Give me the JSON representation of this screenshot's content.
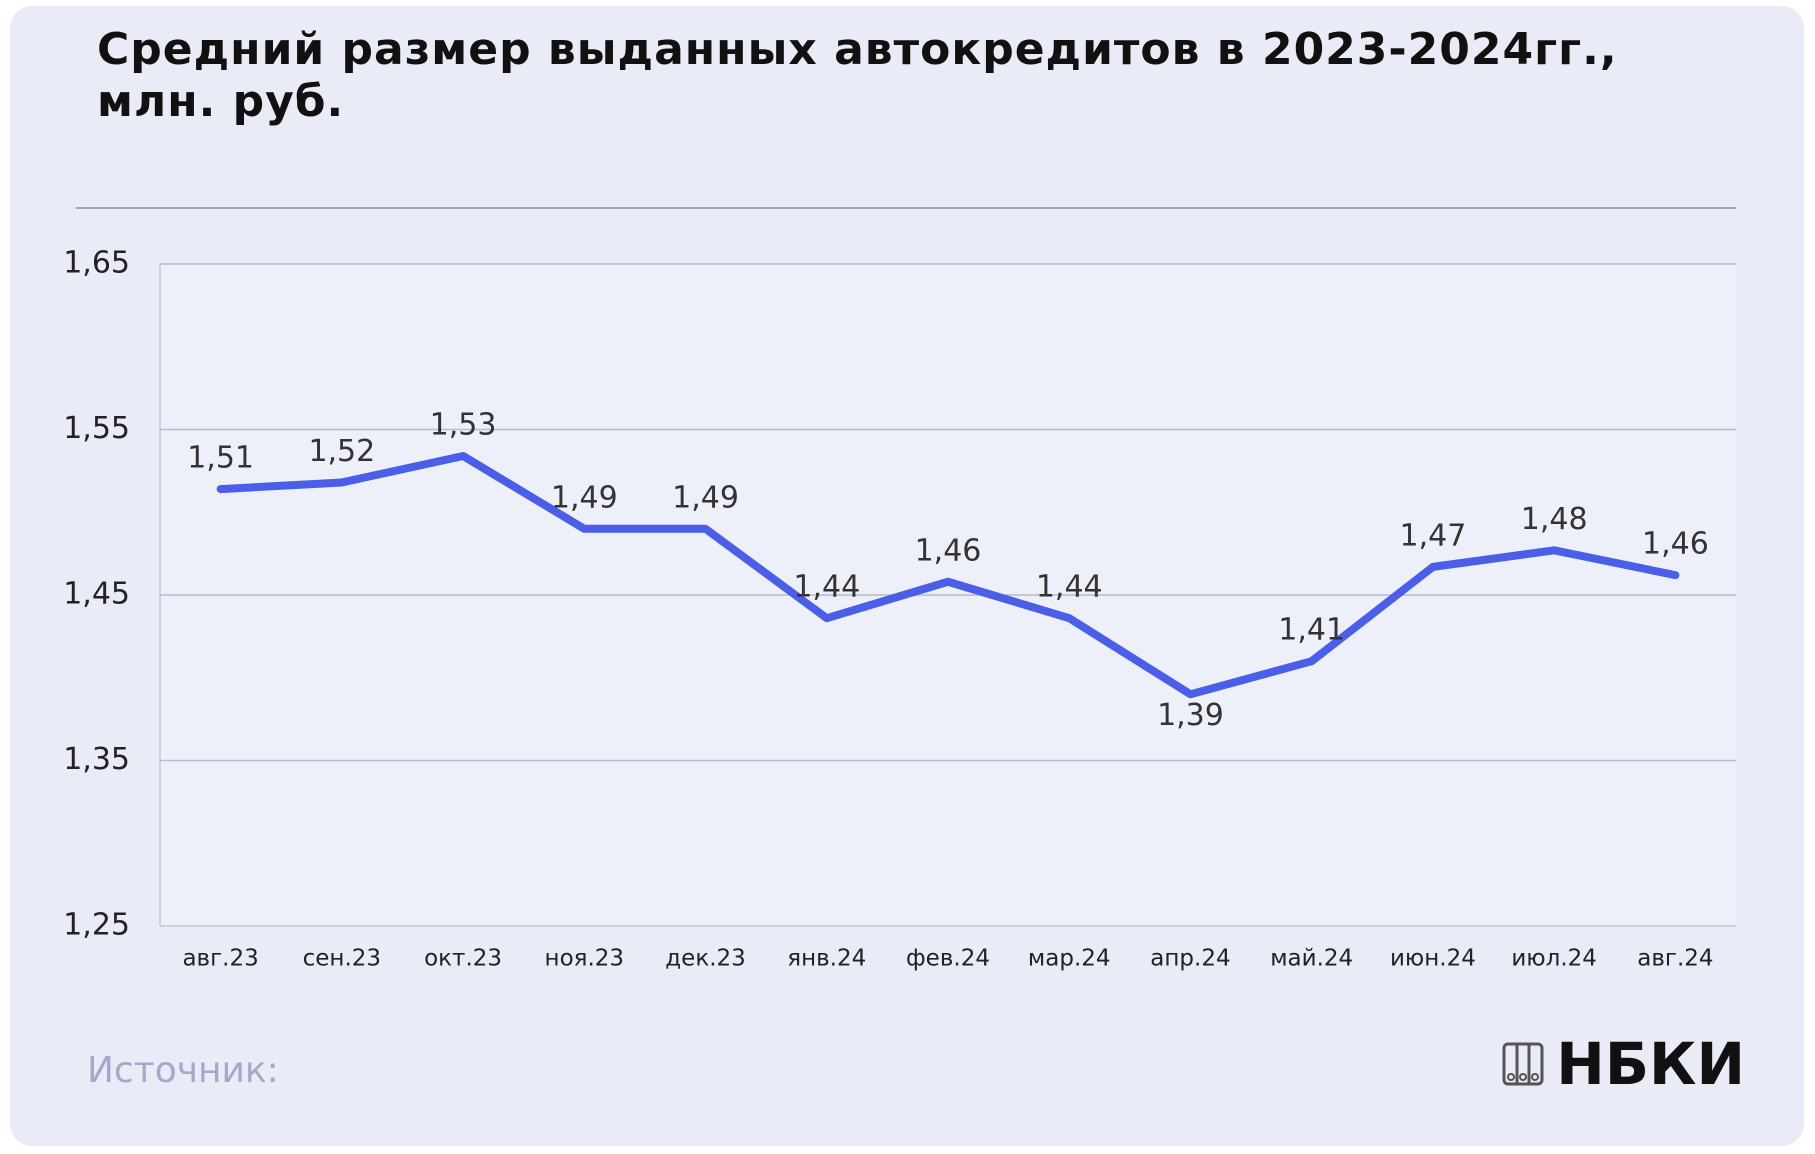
{
  "chart_data": {
    "type": "line",
    "title": "Средний размер выданных автокредитов в 2023-2024гг., млн. руб.",
    "categories": [
      "авг.23",
      "сен.23",
      "окт.23",
      "ноя.23",
      "дек.23",
      "янв.24",
      "фев.24",
      "мар.24",
      "апр.24",
      "май.24",
      "июн.24",
      "июл.24",
      "авг.24"
    ],
    "series": [
      {
        "name": "Средний размер",
        "color": "#4a5ee8",
        "values": [
          1.514,
          1.518,
          1.534,
          1.49,
          1.49,
          1.436,
          1.458,
          1.436,
          1.39,
          1.41,
          1.467,
          1.477,
          1.462
        ],
        "value_labels": [
          "1,51",
          "1,52",
          "1,53",
          "1,49",
          "1,49",
          "1,44",
          "1,46",
          "1,44",
          "1,39",
          "1,41",
          "1,47",
          "1,48",
          "1,46"
        ]
      }
    ],
    "ylim": [
      1.25,
      1.65
    ],
    "yticks": [
      {
        "value": 1.25,
        "label": "1,25"
      },
      {
        "value": 1.35,
        "label": "1,35"
      },
      {
        "value": 1.45,
        "label": "1,45"
      },
      {
        "value": 1.55,
        "label": "1,55"
      },
      {
        "value": 1.65,
        "label": "1,65"
      }
    ],
    "grid": true,
    "source": "Источник:",
    "logo": "НБКИ"
  }
}
